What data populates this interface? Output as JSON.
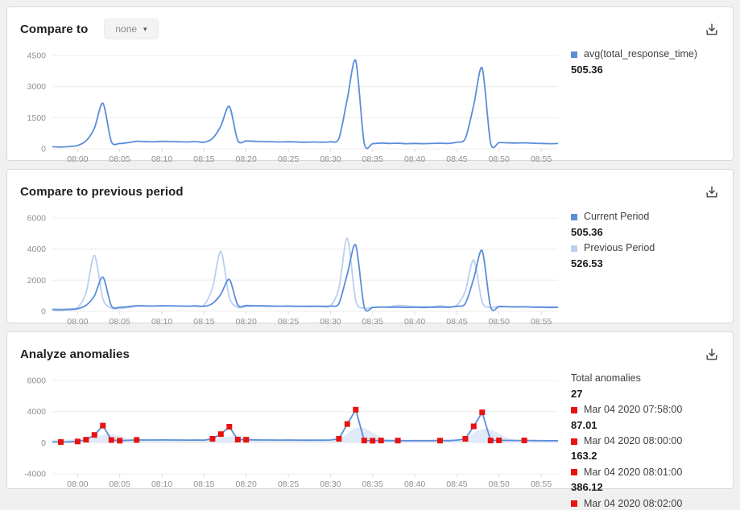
{
  "colors": {
    "current": "#5b8dd9",
    "previous": "#bad0f1",
    "band": "#cfdff4",
    "anomaly": "#e81310",
    "grid": "#ececec",
    "tick": "#d9d9d9",
    "axis_text": "#8f8f8f"
  },
  "panels": [
    {
      "title": "Compare to",
      "dropdown": {
        "value": "none",
        "caret": "▾"
      },
      "legend": [
        {
          "label": "avg(total_response_time)",
          "value": "505.36",
          "color": "current"
        }
      ]
    },
    {
      "title": "Compare to previous period",
      "legend": [
        {
          "label": "Current Period",
          "value": "505.36",
          "color": "current"
        },
        {
          "label": "Previous Period",
          "value": "526.53",
          "color": "previous"
        }
      ]
    },
    {
      "title": "Analyze anomalies",
      "legend_header": {
        "label": "Total anomalies",
        "value": "27"
      },
      "anomalies": [
        {
          "label": "Mar 04 2020 07:58:00",
          "value": "87.01"
        },
        {
          "label": "Mar 04 2020 08:00:00",
          "value": "163.2"
        },
        {
          "label": "Mar 04 2020 08:01:00",
          "value": "386.12"
        },
        {
          "label": "Mar 04 2020 08:02:00",
          "value": ""
        }
      ]
    }
  ],
  "chart_data": [
    {
      "type": "line",
      "title": "Compare to",
      "x_start": "07:57",
      "x_step_minutes": 1,
      "x_ticks": [
        "08:00",
        "08:05",
        "08:10",
        "08:15",
        "08:20",
        "08:25",
        "08:30",
        "08:35",
        "08:40",
        "08:45",
        "08:50",
        "08:55"
      ],
      "ylim": [
        0,
        4500
      ],
      "y_ticks": [
        0,
        1500,
        3000,
        4500
      ],
      "smooth": true,
      "series": [
        {
          "name": "avg(total_response_time)",
          "color": "current",
          "avg": 505.36,
          "values": [
            100,
            87,
            110,
            163,
            386,
            1000,
            2200,
            350,
            260,
            300,
            360,
            350,
            340,
            360,
            350,
            340,
            330,
            350,
            320,
            500,
            1100,
            2050,
            400,
            380,
            360,
            350,
            340,
            330,
            340,
            330,
            320,
            330,
            320,
            340,
            500,
            2400,
            4250,
            280,
            250,
            280,
            260,
            270,
            250,
            260,
            250,
            260,
            270,
            260,
            320,
            500,
            2100,
            3900,
            280,
            300,
            290,
            280,
            290,
            270,
            260,
            250,
            255
          ]
        }
      ]
    },
    {
      "type": "line",
      "title": "Compare to previous period",
      "x_start": "07:57",
      "x_step_minutes": 1,
      "x_ticks": [
        "08:00",
        "08:05",
        "08:10",
        "08:15",
        "08:20",
        "08:25",
        "08:30",
        "08:35",
        "08:40",
        "08:45",
        "08:50",
        "08:55"
      ],
      "ylim": [
        0,
        6000
      ],
      "y_ticks": [
        0,
        2000,
        4000,
        6000
      ],
      "smooth": true,
      "series": [
        {
          "name": "Current Period",
          "color": "current",
          "avg": 505.36,
          "values": [
            100,
            87,
            110,
            163,
            386,
            1000,
            2200,
            350,
            260,
            300,
            360,
            350,
            340,
            360,
            350,
            340,
            330,
            350,
            320,
            500,
            1100,
            2050,
            400,
            380,
            360,
            350,
            340,
            330,
            340,
            330,
            320,
            330,
            320,
            340,
            500,
            2400,
            4250,
            280,
            250,
            280,
            260,
            270,
            250,
            260,
            250,
            260,
            270,
            260,
            320,
            500,
            2100,
            3900,
            280,
            300,
            290,
            280,
            290,
            270,
            260,
            250,
            255
          ]
        },
        {
          "name": "Previous Period",
          "color": "previous",
          "avg": 526.53,
          "values": [
            150,
            140,
            160,
            250,
            1200,
            3600,
            800,
            200,
            180,
            250,
            320,
            330,
            340,
            330,
            340,
            330,
            320,
            330,
            400,
            1500,
            3850,
            900,
            250,
            300,
            330,
            320,
            310,
            320,
            310,
            300,
            310,
            300,
            310,
            350,
            1500,
            4700,
            700,
            200,
            250,
            270,
            300,
            380,
            350,
            300,
            290,
            300,
            350,
            300,
            400,
            1300,
            3300,
            600,
            250,
            320,
            310,
            300,
            290,
            280,
            290,
            280,
            285
          ]
        }
      ]
    },
    {
      "type": "line-anomaly",
      "title": "Analyze anomalies",
      "x_start": "07:57",
      "x_step_minutes": 1,
      "x_ticks": [
        "08:00",
        "08:05",
        "08:10",
        "08:15",
        "08:20",
        "08:25",
        "08:30",
        "08:35",
        "08:40",
        "08:45",
        "08:50",
        "08:55"
      ],
      "ylim": [
        -4000,
        8000
      ],
      "y_ticks": [
        -4000,
        0,
        4000,
        8000
      ],
      "smooth": false,
      "band": {
        "upper": [
          400,
          400,
          400,
          420,
          450,
          600,
          1000,
          1100,
          900,
          500,
          400,
          400,
          400,
          400,
          400,
          400,
          400,
          400,
          400,
          450,
          600,
          800,
          900,
          850,
          500,
          400,
          400,
          400,
          400,
          400,
          400,
          400,
          400,
          400,
          450,
          1200,
          1900,
          1900,
          1300,
          700,
          450,
          400,
          400,
          400,
          400,
          400,
          400,
          400,
          400,
          500,
          1300,
          1700,
          1700,
          1200,
          600,
          400,
          350,
          350,
          350,
          350,
          350
        ],
        "lower": 30
      },
      "series": [
        {
          "name": "value",
          "color": "current",
          "values": [
            100,
            87,
            110,
            163,
            386,
            1000,
            2200,
            350,
            260,
            300,
            360,
            350,
            340,
            360,
            350,
            340,
            330,
            350,
            320,
            500,
            1100,
            2050,
            400,
            380,
            360,
            350,
            340,
            330,
            340,
            330,
            320,
            330,
            320,
            340,
            500,
            2400,
            4250,
            280,
            250,
            280,
            260,
            270,
            250,
            260,
            250,
            260,
            270,
            260,
            320,
            500,
            2100,
            3900,
            280,
            300,
            290,
            280,
            290,
            270,
            260,
            250,
            255
          ],
          "marker_color": "anomaly"
        }
      ],
      "anomalies": {
        "total": 27,
        "marker_indices": [
          1,
          3,
          4,
          5,
          6,
          7,
          8,
          10,
          19,
          20,
          21,
          22,
          23,
          34,
          35,
          36,
          37,
          38,
          39,
          41,
          46,
          49,
          50,
          51,
          52,
          53,
          56
        ],
        "labeled": [
          {
            "time": "Mar 04 2020 07:58:00",
            "value": 87.01
          },
          {
            "time": "Mar 04 2020 08:00:00",
            "value": 163.2
          },
          {
            "time": "Mar 04 2020 08:01:00",
            "value": 386.12
          },
          {
            "time": "Mar 04 2020 08:02:00",
            "value": null
          }
        ]
      }
    }
  ]
}
